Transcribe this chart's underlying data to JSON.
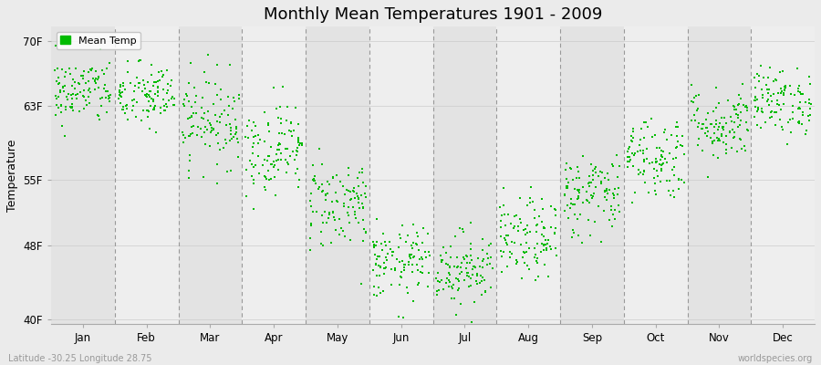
{
  "title": "Monthly Mean Temperatures 1901 - 2009",
  "ylabel": "Temperature",
  "xlabel_labels": [
    "Jan",
    "Feb",
    "Mar",
    "Apr",
    "May",
    "Jun",
    "Jul",
    "Aug",
    "Sep",
    "Oct",
    "Nov",
    "Dec"
  ],
  "ytick_labels": [
    "40F",
    "48F",
    "55F",
    "63F",
    "70F"
  ],
  "ytick_values": [
    40,
    48,
    55,
    63,
    70
  ],
  "ylim": [
    39.5,
    71.5
  ],
  "dot_color": "#00bb00",
  "dot_size": 3,
  "background_color": "#ebebeb",
  "band_color_odd": "#e3e3e3",
  "band_color_even": "#eeeeee",
  "legend_label": "Mean Temp",
  "footer_left": "Latitude -30.25 Longitude 28.75",
  "footer_right": "worldspecies.org",
  "n_years": 109,
  "monthly_means": [
    64.5,
    64.0,
    61.5,
    58.5,
    52.5,
    46.0,
    45.5,
    48.5,
    53.5,
    57.5,
    61.0,
    63.5
  ],
  "monthly_stds": [
    1.8,
    1.8,
    2.5,
    2.5,
    2.5,
    2.0,
    2.0,
    2.2,
    2.3,
    2.3,
    2.0,
    1.8
  ]
}
